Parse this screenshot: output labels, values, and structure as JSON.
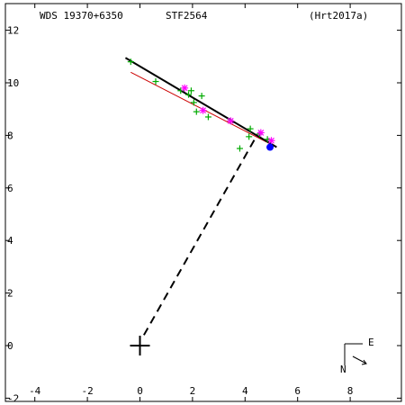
{
  "header": {
    "left": "WDS 19370+6350",
    "center": "STF2564",
    "right": "(Hrt2017a)"
  },
  "compass": {
    "east_label": "E",
    "north_label": "N"
  },
  "colors": {
    "fit_line": "#000000",
    "other_line": "#cc0000",
    "measure": "#00aa00",
    "speckle": "#ff00ff",
    "current": "#0000ff"
  },
  "chart_data": {
    "type": "scatter",
    "title": "",
    "xlabel": "",
    "ylabel": "",
    "xlim": [
      -5,
      10
    ],
    "ylim": [
      -2,
      12.4
    ],
    "x_ticks": [
      -4,
      -2,
      0,
      2,
      4,
      6,
      8
    ],
    "x_tick_labels": [
      "-4",
      "-2",
      "0",
      "2",
      "4",
      "6",
      "8"
    ],
    "y_ticks": [
      -2,
      0,
      2,
      4,
      6,
      8,
      10,
      12
    ],
    "y_tick_labels": [
      "-2",
      "0",
      "2",
      "4",
      "6",
      "8",
      "10",
      "12"
    ],
    "primary_star": [
      0,
      0
    ],
    "fit_line": [
      [
        -0.55,
        10.95
      ],
      [
        5.2,
        7.55
      ]
    ],
    "other_line": [
      [
        -0.35,
        10.4
      ],
      [
        5.2,
        7.55
      ]
    ],
    "connector": [
      [
        0.15,
        0.4
      ],
      [
        4.45,
        8.0
      ]
    ],
    "series": [
      {
        "marker": "plus",
        "points": [
          [
            -0.35,
            10.8
          ],
          [
            0.6,
            10.05
          ],
          [
            1.55,
            9.7
          ],
          [
            1.95,
            9.7
          ],
          [
            2.05,
            9.25
          ],
          [
            2.35,
            9.5
          ],
          [
            2.15,
            8.9
          ],
          [
            2.6,
            8.7
          ],
          [
            1.85,
            9.55
          ],
          [
            3.45,
            8.55
          ],
          [
            3.8,
            7.5
          ],
          [
            4.2,
            8.25
          ],
          [
            4.15,
            7.95
          ],
          [
            4.55,
            8.05
          ],
          [
            4.85,
            7.85
          ]
        ]
      },
      {
        "marker": "star",
        "points": [
          [
            1.7,
            9.8
          ],
          [
            2.4,
            8.95
          ],
          [
            3.45,
            8.55
          ],
          [
            4.6,
            8.1
          ],
          [
            5.0,
            7.8
          ]
        ]
      },
      {
        "marker": "dot",
        "points": [
          [
            4.95,
            7.55
          ]
        ]
      }
    ]
  }
}
